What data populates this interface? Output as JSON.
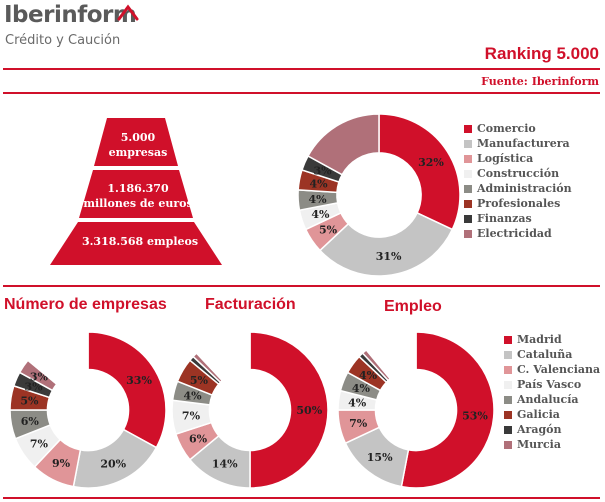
{
  "brand": {
    "name": "Iberinform",
    "tagline": "Crédito y Caución"
  },
  "header": {
    "title": "Ranking 5.000",
    "source": "Fuente: Iberinform"
  },
  "pyramid": {
    "levels": [
      {
        "line1": "5.000",
        "line2": "empresas"
      },
      {
        "line1": "1.186.370",
        "line2": "millones de euros"
      },
      {
        "line1": "3.318.568 empleos",
        "line2": ""
      }
    ],
    "color": "#d0102a"
  },
  "chart_data": [
    {
      "type": "pie",
      "title": "",
      "categories": [
        "Comercio",
        "Manufacturera",
        "Logística",
        "Construcción",
        "Administración",
        "Profesionales",
        "Finanzas",
        "Electricidad"
      ],
      "values": [
        32,
        31,
        5,
        4,
        4,
        4,
        3,
        17
      ],
      "labels": [
        "32%",
        "31%",
        "5%",
        "4%",
        "4%",
        "4%",
        "3%",
        ""
      ],
      "colors": [
        "#d0102a",
        "#c4c4c4",
        "#e09598",
        "#f0f0f0",
        "#8c8c86",
        "#9c3424",
        "#3a3a3a",
        "#b07079"
      ],
      "legend": "right"
    },
    {
      "type": "pie",
      "title": "Número de empresas",
      "categories": [
        "Madrid",
        "Cataluña",
        "C. Valenciana",
        "País Vasco",
        "Andalucía",
        "Galicia",
        "Aragón",
        "Murcia"
      ],
      "values": [
        33,
        20,
        9,
        7,
        6,
        5,
        3,
        3,
        14
      ],
      "labels": [
        "33%",
        "20%",
        "9%",
        "7%",
        "6%",
        "5%",
        "3%",
        "3%",
        ""
      ],
      "colors": [
        "#d0102a",
        "#c4c4c4",
        "#e09598",
        "#f0f0f0",
        "#8c8c86",
        "#9c3424",
        "#3a3a3a",
        "#b07079",
        "#ffffff"
      ]
    },
    {
      "type": "pie",
      "title": "Facturación",
      "categories": [
        "Madrid",
        "Cataluña",
        "C. Valenciana",
        "País Vasco",
        "Andalucía",
        "Galicia",
        "Aragón",
        "Murcia"
      ],
      "values": [
        50,
        14,
        6,
        7,
        4,
        5,
        1,
        1,
        12
      ],
      "labels": [
        "50%",
        "14%",
        "6%",
        "7%",
        "4%",
        "5%",
        "",
        "",
        ""
      ],
      "colors": [
        "#d0102a",
        "#c4c4c4",
        "#e09598",
        "#f0f0f0",
        "#8c8c86",
        "#9c3424",
        "#3a3a3a",
        "#b07079",
        "#ffffff"
      ]
    },
    {
      "type": "pie",
      "title": "Empleo",
      "categories": [
        "Madrid",
        "Cataluña",
        "C. Valenciana",
        "País Vasco",
        "Andalucía",
        "Galicia",
        "Aragón",
        "Murcia"
      ],
      "values": [
        53,
        15,
        7,
        4,
        4,
        4,
        1,
        1,
        11
      ],
      "labels": [
        "53%",
        "15%",
        "7%",
        "4%",
        "4%",
        "4%",
        "",
        "",
        ""
      ],
      "colors": [
        "#d0102a",
        "#c4c4c4",
        "#e09598",
        "#f0f0f0",
        "#8c8c86",
        "#9c3424",
        "#3a3a3a",
        "#b07079",
        "#ffffff"
      ],
      "legend": "right"
    }
  ]
}
